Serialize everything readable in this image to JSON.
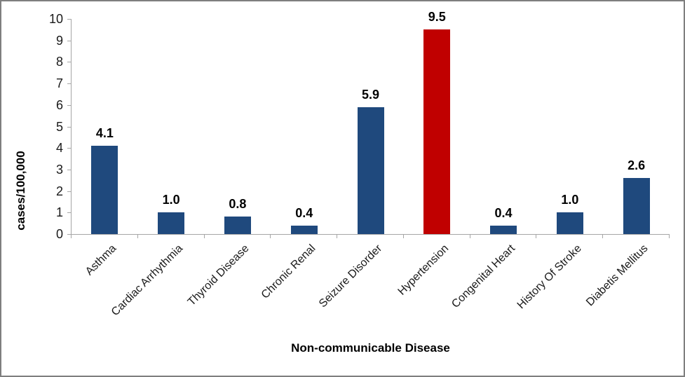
{
  "chart_data": {
    "type": "bar",
    "title": "",
    "xlabel": "Non-communicable Disease",
    "ylabel": "cases/100,000",
    "categories": [
      "Asthma",
      "Cardiac Arrhythmia",
      "Thyroid Disease",
      "Chronic Renal",
      "Seizure Disorder",
      "Hypertension",
      "Congenital Heart",
      "History Of Stroke",
      "Diabetis Mellitus"
    ],
    "values": [
      4.1,
      1.0,
      0.8,
      0.4,
      5.9,
      9.5,
      0.4,
      1.0,
      2.6
    ],
    "value_labels": [
      "4.1",
      "1.0",
      "0.8",
      "0.4",
      "5.9",
      "9.5",
      "0.4",
      "1.0",
      "2.6"
    ],
    "bar_colors": [
      "#1F497D",
      "#1F497D",
      "#1F497D",
      "#1F497D",
      "#1F497D",
      "#C00000",
      "#1F497D",
      "#1F497D",
      "#1F497D"
    ],
    "default_bar_color": "#1F497D",
    "highlight_bar_color": "#C00000",
    "highlighted_category": "Hypertension",
    "ylim": [
      0,
      10
    ],
    "yticks": [
      0,
      1,
      2,
      3,
      4,
      5,
      6,
      7,
      8,
      9,
      10
    ],
    "grid": false,
    "legend": "none",
    "axis_color": "#A6A6A6",
    "frame_border_color": "#7F7F7F",
    "label_text_color": "#000000"
  }
}
